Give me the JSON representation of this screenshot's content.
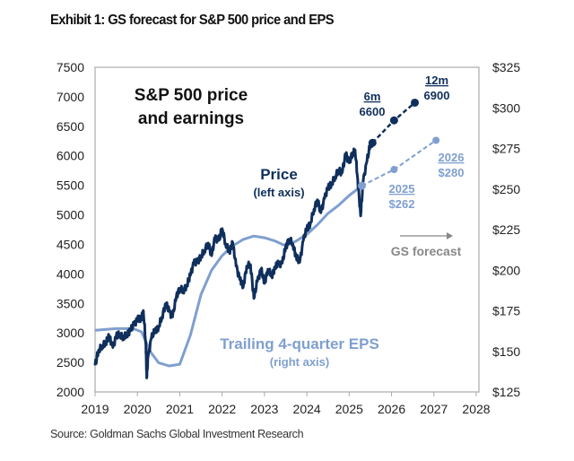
{
  "title": "Exhibit 1: GS forecast for S&P 500 price and EPS",
  "source": "Source: Goldman Sachs Global Investment Research",
  "chart_data": {
    "type": "line",
    "inner_title": [
      "S&P 500 price",
      "and earnings"
    ],
    "xlim": [
      2019,
      2028
    ],
    "x_ticks": [
      "2019",
      "2020",
      "2021",
      "2022",
      "2023",
      "2024",
      "2025",
      "2026",
      "2027",
      "2028"
    ],
    "y_left": {
      "lim": [
        2000,
        7500
      ],
      "ticks": [
        "2000",
        "2500",
        "3000",
        "3500",
        "4000",
        "4500",
        "5000",
        "5500",
        "6000",
        "6500",
        "7000",
        "7500"
      ]
    },
    "y_right": {
      "lim": [
        125,
        325
      ],
      "ticks": [
        "$125",
        "$150",
        "$175",
        "$200",
        "$225",
        "$250",
        "$275",
        "$300",
        "$325"
      ]
    },
    "grid": false,
    "colors": {
      "price": "#0f2f5c",
      "eps": "#7f9fcf",
      "forecast_text": "#888888"
    },
    "series": [
      {
        "name": "Price",
        "sublabel": "(left axis)",
        "axis": "left",
        "x": [
          2019.0,
          2019.08,
          2019.17,
          2019.25,
          2019.33,
          2019.42,
          2019.5,
          2019.58,
          2019.67,
          2019.75,
          2019.83,
          2019.92,
          2020.0,
          2020.08,
          2020.14,
          2020.2,
          2020.22,
          2020.25,
          2020.33,
          2020.42,
          2020.5,
          2020.58,
          2020.67,
          2020.75,
          2020.83,
          2020.92,
          2021.0,
          2021.08,
          2021.17,
          2021.25,
          2021.33,
          2021.42,
          2021.5,
          2021.58,
          2021.67,
          2021.75,
          2021.83,
          2021.92,
          2022.0,
          2022.08,
          2022.17,
          2022.25,
          2022.33,
          2022.42,
          2022.5,
          2022.58,
          2022.67,
          2022.75,
          2022.83,
          2022.92,
          2023.0,
          2023.08,
          2023.17,
          2023.25,
          2023.33,
          2023.42,
          2023.5,
          2023.58,
          2023.67,
          2023.75,
          2023.83,
          2023.92,
          2024.0,
          2024.08,
          2024.17,
          2024.25,
          2024.33,
          2024.42,
          2024.5,
          2024.58,
          2024.67,
          2024.75,
          2024.83,
          2024.92,
          2025.0,
          2025.08,
          2025.14,
          2025.2,
          2025.27,
          2025.33,
          2025.42,
          2025.5,
          2025.55
        ],
        "values": [
          2450,
          2704,
          2784,
          2834,
          2946,
          2752,
          2942,
          2980,
          2926,
          2977,
          3038,
          3141,
          3231,
          3226,
          3380,
          2800,
          2237,
          2585,
          2912,
          3044,
          3100,
          3271,
          3500,
          3363,
          3270,
          3622,
          3756,
          3714,
          3811,
          3973,
          4181,
          4204,
          4298,
          4395,
          4523,
          4308,
          4605,
          4567,
          4766,
          4516,
          4374,
          4530,
          4132,
          3900,
          3785,
          4130,
          4158,
          3586,
          3872,
          4080,
          3840,
          4077,
          3970,
          4109,
          4169,
          4180,
          4450,
          4589,
          4508,
          4288,
          4194,
          4568,
          4770,
          4846,
          5096,
          5254,
          5036,
          5278,
          5460,
          5522,
          5648,
          5762,
          5705,
          6032,
          5882,
          6041,
          6100,
          5612,
          4982,
          5569,
          5912,
          6205,
          6220
        ]
      },
      {
        "name": "Trailing 4-quarter EPS",
        "sublabel": "(right axis)",
        "axis": "right",
        "x": [
          2019.0,
          2019.5,
          2019.9,
          2020.1,
          2020.3,
          2020.5,
          2020.75,
          2021.0,
          2021.25,
          2021.5,
          2021.75,
          2022.0,
          2022.25,
          2022.5,
          2022.75,
          2023.0,
          2023.25,
          2023.5,
          2023.75,
          2024.0,
          2024.25,
          2024.5,
          2024.75,
          2025.0,
          2025.3
        ],
        "values": [
          163,
          164,
          164,
          162,
          150,
          143,
          141,
          142,
          160,
          185,
          200,
          209,
          215,
          219,
          221,
          220,
          218,
          215,
          218,
          222,
          228,
          235,
          240,
          246,
          252
        ]
      }
    ],
    "forecasts": {
      "price": {
        "x": [
          2025.55,
          2026.06,
          2026.55
        ],
        "values": [
          6220,
          6600,
          6900
        ],
        "labels": [
          {
            "period": "6m",
            "value": "6600"
          },
          {
            "period": "12m",
            "value": "6900"
          }
        ]
      },
      "eps": {
        "x": [
          2025.3,
          2026.06,
          2027.05
        ],
        "values": [
          252,
          262,
          280
        ],
        "labels": [
          {
            "period": "2025",
            "value": "$262"
          },
          {
            "period": "2026",
            "value": "$280"
          }
        ]
      }
    },
    "annotation": "GS forecast"
  }
}
